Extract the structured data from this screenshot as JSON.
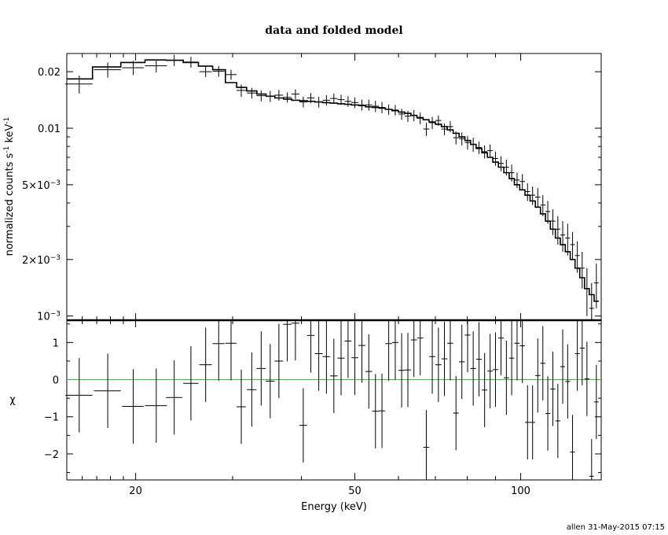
{
  "title": "data and folded model",
  "signature": "allen 31-May-2015 07:15",
  "chart_data": [
    {
      "type": "scatter",
      "panel": "spectrum",
      "title": "data and folded model",
      "xlabel": "",
      "ylabel": "normalized counts s^-1 keV^-1",
      "ylabel_parts": {
        "a": "normalized counts s",
        "b": "-1",
        "c": " keV",
        "d": "-1"
      },
      "xscale": "log",
      "yscale": "log",
      "xlim": [
        15,
        140
      ],
      "ylim": [
        0.00095,
        0.025
      ],
      "ytick_labels": [
        {
          "value": 0.02,
          "m": "0.02",
          "e": ""
        },
        {
          "value": 0.01,
          "m": "0.01",
          "e": ""
        },
        {
          "value": 0.005,
          "m": "5×10",
          "e": "−3"
        },
        {
          "value": 0.002,
          "m": "2×10",
          "e": "−3"
        },
        {
          "value": 0.001,
          "m": "10",
          "e": "−3"
        }
      ],
      "series": [
        {
          "kind": "data",
          "x": [
            15.8,
            17.8,
            19.8,
            21.8,
            23.5,
            25.2,
            26.8,
            28.3,
            29.8,
            31.1,
            32.5,
            33.8,
            35.1,
            36.4,
            37.7,
            39.0,
            40.3,
            41.6,
            43.0,
            44.4,
            45.8,
            47.2,
            48.6,
            50.0,
            51.5,
            53.0,
            54.5,
            56.0,
            57.6,
            59.2,
            60.8,
            62.4,
            64.0,
            65.7,
            67.4,
            69.1,
            70.9,
            72.7,
            74.5,
            76.3,
            78.2,
            80.1,
            82.0,
            84.0,
            86.0,
            88.0,
            90.0,
            92.1,
            94.2,
            96.3,
            98.5,
            100.7,
            102.9,
            105.1,
            107.4,
            109.7,
            112.0,
            114.4,
            116.8,
            119.2,
            121.7,
            124.2,
            126.7,
            129.3,
            131.9,
            134.5,
            137.2
          ],
          "x_err": [
            0.9,
            1.0,
            0.9,
            1.0,
            0.8,
            0.8,
            0.7,
            0.7,
            0.7,
            0.6,
            0.65,
            0.65,
            0.65,
            0.65,
            0.65,
            0.65,
            0.65,
            0.65,
            0.7,
            0.7,
            0.7,
            0.7,
            0.7,
            0.7,
            0.75,
            0.75,
            0.75,
            0.75,
            0.8,
            0.8,
            0.8,
            0.8,
            0.8,
            0.85,
            0.85,
            0.85,
            0.9,
            0.9,
            0.9,
            0.9,
            0.95,
            0.95,
            0.95,
            1.0,
            1.0,
            1.0,
            1.0,
            1.05,
            1.05,
            1.05,
            1.1,
            1.1,
            1.1,
            1.1,
            1.15,
            1.15,
            1.15,
            1.2,
            1.2,
            1.2,
            1.25,
            1.25,
            1.25,
            1.3,
            1.3,
            1.3,
            1.35
          ],
          "y": [
            0.0172,
            0.0205,
            0.021,
            0.0215,
            0.023,
            0.0225,
            0.02,
            0.0201,
            0.0193,
            0.0159,
            0.0154,
            0.0149,
            0.0148,
            0.015,
            0.0146,
            0.0152,
            0.0138,
            0.0145,
            0.0138,
            0.0141,
            0.0144,
            0.0142,
            0.0139,
            0.0137,
            0.0133,
            0.0133,
            0.0131,
            0.0129,
            0.0126,
            0.0125,
            0.0119,
            0.0116,
            0.0117,
            0.0113,
            0.0099,
            0.0107,
            0.011,
            0.0099,
            0.0102,
            0.0089,
            0.0088,
            0.0084,
            0.0082,
            0.0079,
            0.0075,
            0.0076,
            0.0069,
            0.0065,
            0.0062,
            0.0058,
            0.0053,
            0.0052,
            0.0046,
            0.0044,
            0.0043,
            0.0039,
            0.0036,
            0.0032,
            0.0029,
            0.0027,
            0.0026,
            0.0024,
            0.0021,
            0.0018,
            0.0014,
            0.0011,
            0.0015
          ],
          "y_err": [
            0.0019,
            0.0019,
            0.0018,
            0.0017,
            0.0016,
            0.0015,
            0.0013,
            0.0013,
            0.0012,
            0.0012,
            0.001,
            0.001,
            0.001,
            0.001,
            0.0009,
            0.0009,
            0.0009,
            0.0009,
            0.0009,
            0.0009,
            0.0009,
            0.0009,
            0.0009,
            0.0009,
            0.0009,
            0.0009,
            0.0009,
            0.0009,
            0.0008,
            0.0008,
            0.0008,
            0.0008,
            0.0008,
            0.0008,
            0.0008,
            0.0008,
            0.0007,
            0.0007,
            0.0007,
            0.0007,
            0.0007,
            0.0007,
            0.0007,
            0.0006,
            0.0006,
            0.0006,
            0.0006,
            0.0006,
            0.0006,
            0.0006,
            0.0005,
            0.0005,
            0.0005,
            0.0005,
            0.0005,
            0.0005,
            0.0005,
            0.0005,
            0.0005,
            0.0005,
            0.0005,
            0.0004,
            0.0004,
            0.0004,
            0.0004,
            0.0004,
            0.0004
          ]
        },
        {
          "kind": "model",
          "edges": [
            15,
            16.7,
            18.8,
            20.8,
            22.7,
            24.4,
            26.0,
            27.6,
            29.1,
            30.5,
            31.8,
            33.2,
            34.5,
            35.8,
            37.1,
            38.4,
            39.7,
            41.0,
            42.3,
            43.7,
            45.1,
            46.5,
            47.9,
            49.3,
            50.8,
            52.3,
            53.8,
            55.3,
            56.8,
            58.4,
            60.0,
            61.6,
            63.2,
            64.8,
            66.5,
            68.2,
            70.0,
            71.8,
            73.6,
            75.4,
            77.3,
            79.2,
            81.1,
            83.0,
            85.0,
            87.0,
            89.0,
            91.1,
            93.2,
            95.3,
            97.4,
            99.6,
            101.8,
            104.0,
            106.3,
            108.6,
            110.9,
            113.2,
            115.6,
            118.0,
            120.5,
            123.0,
            125.5,
            128.0,
            130.6,
            133.2,
            135.9,
            138.6
          ],
          "y": [
            0.0183,
            0.0212,
            0.0224,
            0.0231,
            0.023,
            0.0224,
            0.0214,
            0.0205,
            0.0175,
            0.0165,
            0.0158,
            0.0152,
            0.0148,
            0.0145,
            0.0143,
            0.0141,
            0.014,
            0.0139,
            0.0138,
            0.0137,
            0.0136,
            0.0135,
            0.0134,
            0.0133,
            0.0132,
            0.013,
            0.0129,
            0.0128,
            0.0126,
            0.0124,
            0.0122,
            0.012,
            0.0117,
            0.0114,
            0.0111,
            0.0108,
            0.0105,
            0.0102,
            0.0098,
            0.0094,
            0.009,
            0.0086,
            0.0082,
            0.0078,
            0.0074,
            0.007,
            0.0066,
            0.0062,
            0.0058,
            0.0054,
            0.005,
            0.0047,
            0.0044,
            0.0041,
            0.0038,
            0.0035,
            0.0032,
            0.0029,
            0.0026,
            0.0024,
            0.0022,
            0.002,
            0.0018,
            0.0016,
            0.0014,
            0.0013,
            0.0012
          ]
        }
      ]
    },
    {
      "type": "scatter",
      "panel": "residuals",
      "xlabel": "Energy (keV)",
      "ylabel": "χ",
      "xscale": "log",
      "xlim": [
        15,
        140
      ],
      "ylim": [
        -2.7,
        1.6
      ],
      "xticks": [
        20,
        50,
        100
      ],
      "xtick_labels": [
        "20",
        "50",
        "100"
      ],
      "yticks": [
        -2,
        -1,
        0,
        1
      ],
      "ytick_labels": [
        "−2",
        "−1",
        "0",
        "1"
      ],
      "zero_line_color": "#28c828",
      "series": [
        {
          "kind": "residuals",
          "x": [
            15.8,
            17.8,
            19.8,
            21.8,
            23.5,
            25.2,
            26.8,
            28.3,
            29.8,
            31.1,
            32.5,
            33.8,
            35.1,
            36.4,
            37.7,
            39.0,
            40.3,
            41.6,
            43.0,
            44.4,
            45.8,
            47.2,
            48.6,
            50.0,
            51.5,
            53.0,
            54.5,
            56.0,
            57.6,
            59.2,
            60.8,
            62.4,
            64.0,
            65.7,
            67.4,
            69.1,
            70.9,
            72.7,
            74.5,
            76.3,
            78.2,
            80.1,
            82.0,
            84.0,
            86.0,
            88.0,
            90.0,
            92.1,
            94.2,
            96.3,
            98.5,
            100.7,
            102.9,
            105.1,
            107.4,
            109.7,
            112.0,
            114.4,
            116.8,
            119.2,
            121.7,
            124.2,
            126.7,
            129.3,
            131.9,
            134.5,
            137.2
          ],
          "x_err": [
            0.9,
            1.0,
            0.9,
            1.0,
            0.8,
            0.8,
            0.7,
            0.7,
            0.7,
            0.6,
            0.65,
            0.65,
            0.65,
            0.65,
            0.65,
            0.65,
            0.65,
            0.65,
            0.7,
            0.7,
            0.7,
            0.7,
            0.7,
            0.7,
            0.75,
            0.75,
            0.75,
            0.75,
            0.8,
            0.8,
            0.8,
            0.8,
            0.8,
            0.85,
            0.85,
            0.85,
            0.9,
            0.9,
            0.9,
            0.9,
            0.95,
            0.95,
            0.95,
            1.0,
            1.0,
            1.0,
            1.0,
            1.05,
            1.05,
            1.05,
            1.1,
            1.1,
            1.1,
            1.1,
            1.15,
            1.15,
            1.15,
            1.2,
            1.2,
            1.2,
            1.25,
            1.25,
            1.25,
            1.3,
            1.3,
            1.3,
            1.35
          ],
          "y": [
            -0.42,
            -0.3,
            -0.72,
            -0.7,
            -0.48,
            -0.1,
            0.4,
            0.97,
            0.98,
            -0.73,
            -0.27,
            0.3,
            -0.04,
            0.5,
            1.49,
            1.52,
            -1.23,
            1.19,
            0.7,
            0.62,
            0.1,
            0.58,
            1.04,
            0.59,
            0.92,
            0.22,
            -0.85,
            -0.84,
            0.97,
            1.0,
            0.25,
            0.26,
            1.07,
            1.12,
            -1.82,
            0.62,
            0.4,
            0.56,
            0.98,
            -0.9,
            0.48,
            1.2,
            0.3,
            0.55,
            -0.28,
            0.23,
            0.27,
            1.12,
            0.05,
            0.58,
            0.98,
            0.91,
            -1.15,
            -1.15,
            0.11,
            0.44,
            -0.91,
            -0.25,
            -1.11,
            0.35,
            -0.05,
            -1.95,
            0.7,
            0.85,
            0.02,
            -2.6,
            -0.6
          ],
          "y_err": [
            1.0,
            1.0,
            1.0,
            1.0,
            1.0,
            1.0,
            1.0,
            1.0,
            1.0,
            1.0,
            1.0,
            1.0,
            1.0,
            1.0,
            1.0,
            1.0,
            1.0,
            1.0,
            1.0,
            1.0,
            1.0,
            1.0,
            1.0,
            1.0,
            1.0,
            1.0,
            1.0,
            1.0,
            1.0,
            1.0,
            1.0,
            1.0,
            1.0,
            1.0,
            1.0,
            1.0,
            1.0,
            1.0,
            1.0,
            1.0,
            1.0,
            1.0,
            1.0,
            1.0,
            1.0,
            1.0,
            1.0,
            1.0,
            1.0,
            1.0,
            1.0,
            1.0,
            1.0,
            1.0,
            1.0,
            1.0,
            1.0,
            1.0,
            1.0,
            1.0,
            1.0,
            1.0,
            1.0,
            1.0,
            1.0,
            1.0,
            1.0
          ]
        }
      ]
    }
  ]
}
